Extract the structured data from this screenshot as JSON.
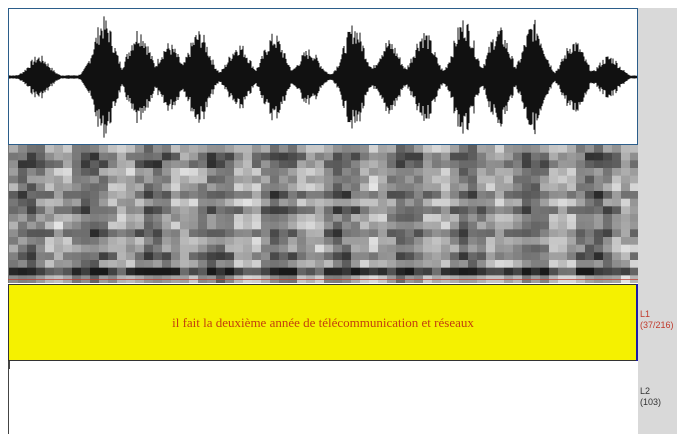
{
  "annotation_tiers": [
    {
      "name": "L1",
      "count": "(37/216)",
      "text": "il fait la deuxième année de télécommunication et réseaux"
    },
    {
      "name": "L2",
      "count": "(103)",
      "text": ""
    }
  ],
  "colors": {
    "tier_l1_fill": "#f5f100",
    "tier_l1_text": "#c2410c",
    "tier_l1_label": "#c0392b",
    "cursor": "#1c1aa8",
    "waveform": "#111111"
  },
  "icons": []
}
